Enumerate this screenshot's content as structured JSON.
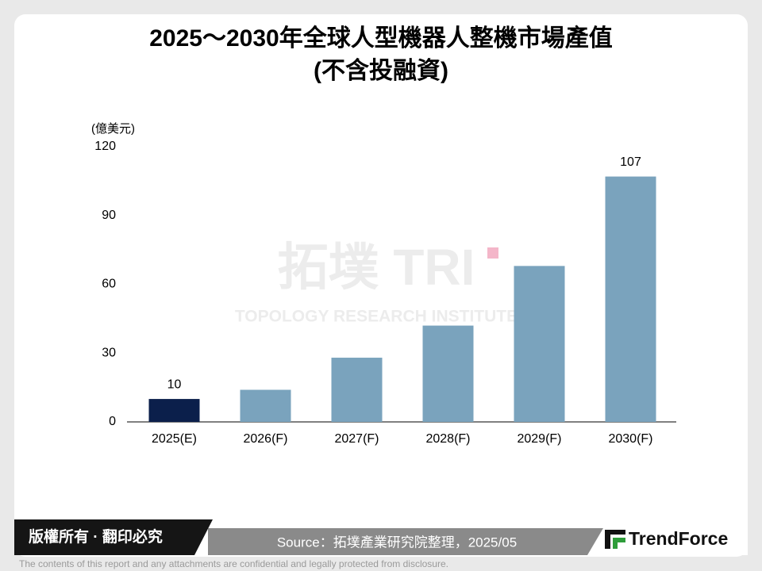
{
  "chart_data": {
    "type": "bar",
    "title": "2025～2030年全球人型機器人整機市場產值",
    "subtitle": "(不含投融資)",
    "y_label": "(億美元)",
    "categories": [
      "2025(E)",
      "2026(F)",
      "2027(F)",
      "2028(F)",
      "2029(F)",
      "2030(F)"
    ],
    "values": [
      10,
      14,
      28,
      42,
      68,
      107
    ],
    "value_labels": [
      "10",
      null,
      null,
      null,
      null,
      "107"
    ],
    "colors": [
      "#0b1f4b",
      "#7aa3bd",
      "#7aa3bd",
      "#7aa3bd",
      "#7aa3bd",
      "#7aa3bd"
    ],
    "ylim": [
      0,
      120
    ],
    "yticks": [
      0,
      30,
      60,
      90,
      120
    ],
    "grid": false
  },
  "watermark": {
    "logo": "拓墣 TRI",
    "name": "TOPOLOGY RESEARCH INSTITUTE"
  },
  "footer": {
    "rights": "版權所有 · 翻印必究",
    "source": "Source：拓墣產業研究院整理，2025/05",
    "brand": "TrendForce",
    "disclaimer": "The contents of this report and any attachments are confidential and legally protected from disclosure."
  }
}
